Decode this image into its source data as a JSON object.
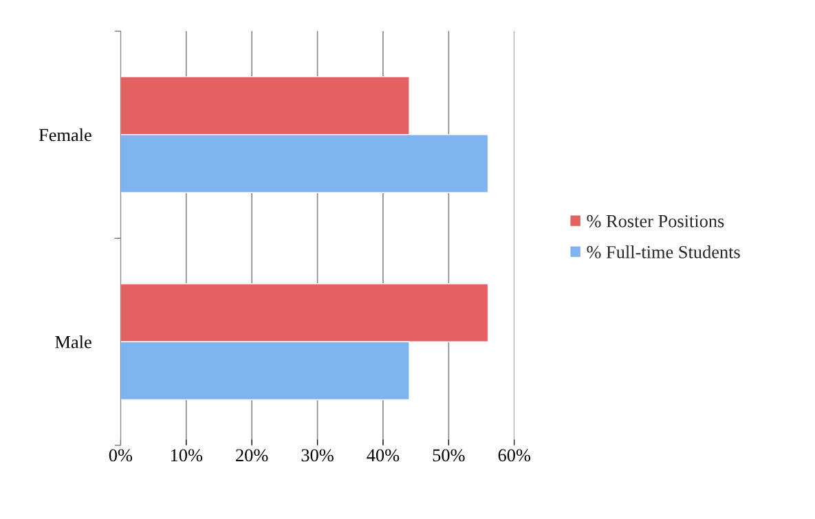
{
  "chart_data": {
    "type": "bar",
    "orientation": "horizontal",
    "categories": [
      "Female",
      "Male"
    ],
    "series": [
      {
        "name": "% Roster Positions",
        "color": "#e26262",
        "values": [
          44,
          56
        ]
      },
      {
        "name": "% Full-time Students",
        "color": "#7fb3ef",
        "values": [
          56,
          44
        ]
      }
    ],
    "xlim": [
      0,
      60
    ],
    "xticks": [
      {
        "value": 0,
        "label": "0%"
      },
      {
        "value": 10,
        "label": "10%"
      },
      {
        "value": 20,
        "label": "20%"
      },
      {
        "value": 30,
        "label": "30%"
      },
      {
        "value": 40,
        "label": "40%"
      },
      {
        "value": 50,
        "label": "50%"
      },
      {
        "value": 60,
        "label": "60%"
      }
    ],
    "grid": "x",
    "legend": "right"
  }
}
